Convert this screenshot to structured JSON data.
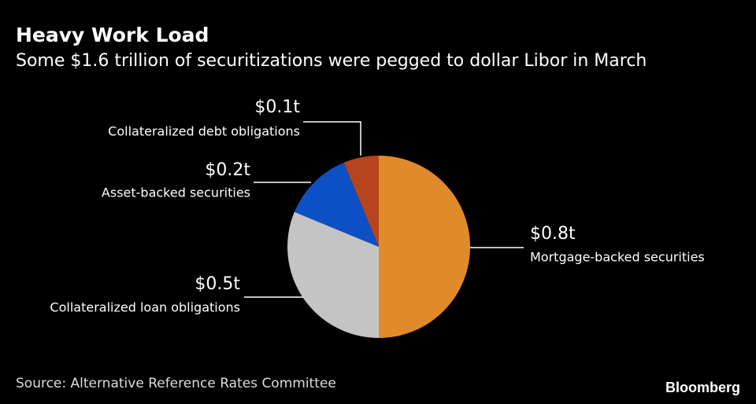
{
  "chart_data": {
    "type": "pie",
    "title": "Heavy Work Load",
    "subtitle": "Some $1.6 trillion of securitizations were pegged to dollar Libor in March",
    "categories": [
      "Mortgage-backed securities",
      "Collateralized loan obligations",
      "Asset-backed securities",
      "Collateralized debt obligations"
    ],
    "values": [
      0.8,
      0.5,
      0.2,
      0.1
    ],
    "value_labels": [
      "$0.8t",
      "$0.5t",
      "$0.2t",
      "$0.1t"
    ],
    "colors": [
      "#e08b29",
      "#c4c4c4",
      "#0d4fc4",
      "#b5441f"
    ],
    "source": "Source: Alternative Reference Rates Committee",
    "logo": "Bloomberg"
  }
}
